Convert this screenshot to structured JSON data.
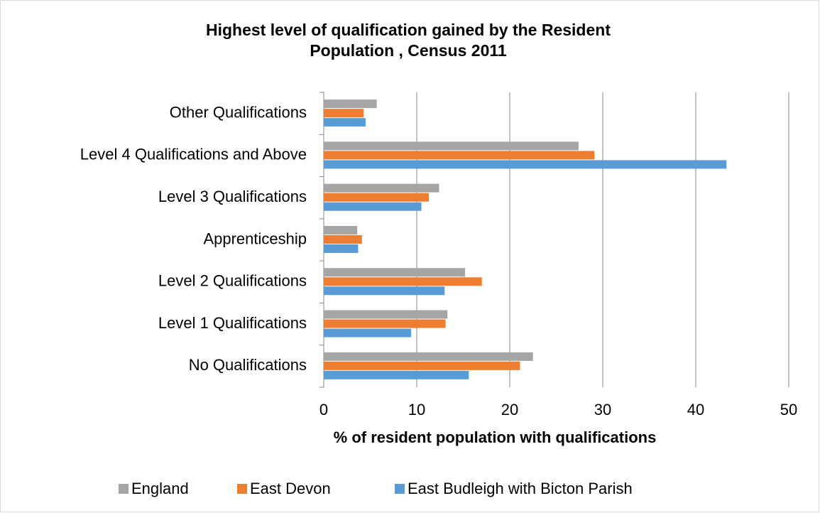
{
  "chart_data": {
    "type": "hbar",
    "title": [
      "Highest level  of qualification gained by the  Resident",
      "Population , Census 2011"
    ],
    "xlabel": "% of resident population with qualifications",
    "categories": [
      "Other Qualifications",
      "Level 4 Qualifications and Above",
      "Level 3 Qualifications",
      "Apprenticeship",
      "Level 2 Qualifications",
      "Level 1 Qualifications",
      "No Qualifications"
    ],
    "series": [
      {
        "name": "England",
        "color": "#a5a5a5",
        "values": [
          5.7,
          27.4,
          12.4,
          3.6,
          15.2,
          13.3,
          22.5
        ]
      },
      {
        "name": "East Devon",
        "color": "#ed7d31",
        "values": [
          4.3,
          29.1,
          11.3,
          4.1,
          17.0,
          13.1,
          21.1
        ]
      },
      {
        "name": "East Budleigh with Bicton Parish",
        "color": "#5b9bd5",
        "values": [
          4.5,
          43.3,
          10.5,
          3.7,
          13.0,
          9.4,
          15.6
        ]
      }
    ],
    "xlim": [
      0,
      50
    ],
    "xticks": [
      0,
      10,
      20,
      30,
      40,
      50
    ],
    "grid": true,
    "legend": "bottom"
  }
}
